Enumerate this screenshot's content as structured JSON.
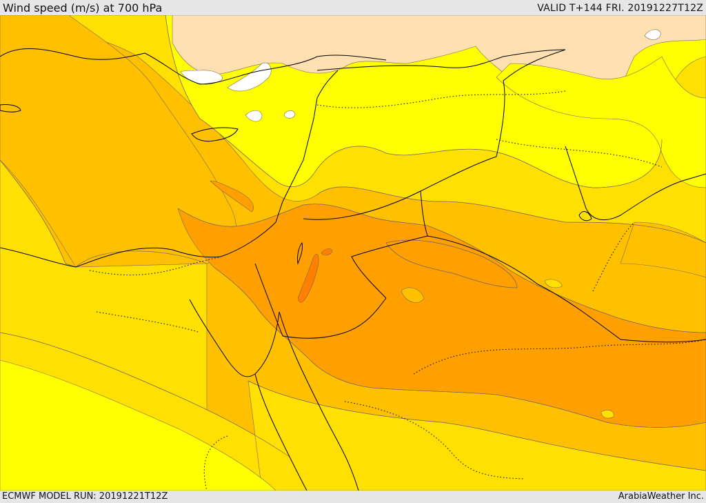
{
  "header": {
    "title": "Wind speed (m/s) at 700 hPa",
    "valid": "VALID T+144 FRI. 20191227T12Z"
  },
  "footer": {
    "model_run": "ECMWF MODEL RUN: 20191221T12Z",
    "credit": "ArabiaWeather Inc."
  },
  "map": {
    "field": "wind speed at 700 hPa",
    "shading_colors": {
      "lowest_white": "#ffffff",
      "low_tan": "#ffe0b0",
      "yellow": "#ffff00",
      "gold": "#ffe000",
      "light_orange": "#ffc000",
      "orange": "#ffa000",
      "dark_orange": "#ff8000"
    },
    "line_colors": {
      "coast_and_borders": "#000000",
      "contours": "#7a6a55"
    }
  }
}
